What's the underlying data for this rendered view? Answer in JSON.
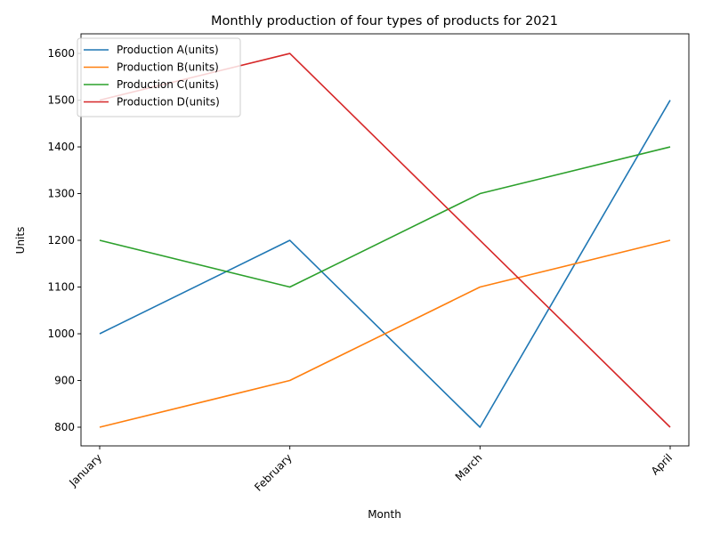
{
  "chart_data": {
    "type": "line",
    "title": "Monthly production of four types of products for 2021",
    "xlabel": "Month",
    "ylabel": "Units",
    "categories": [
      "January",
      "February",
      "March",
      "April"
    ],
    "ylim": [
      760,
      1642
    ],
    "yticks": [
      800,
      900,
      1000,
      1100,
      1200,
      1300,
      1400,
      1500,
      1600
    ],
    "grid": false,
    "legend_position": "top-left",
    "series": [
      {
        "name": "Production A(units)",
        "color": "#1f77b4",
        "values": [
          1000,
          1200,
          800,
          1500
        ]
      },
      {
        "name": "Production B(units)",
        "color": "#ff7f0e",
        "values": [
          800,
          900,
          1100,
          1200
        ]
      },
      {
        "name": "Production C(units)",
        "color": "#2ca02c",
        "values": [
          1200,
          1100,
          1300,
          1400
        ]
      },
      {
        "name": "Production D(units)",
        "color": "#d62728",
        "values": [
          1500,
          1600,
          1200,
          800
        ]
      }
    ]
  }
}
